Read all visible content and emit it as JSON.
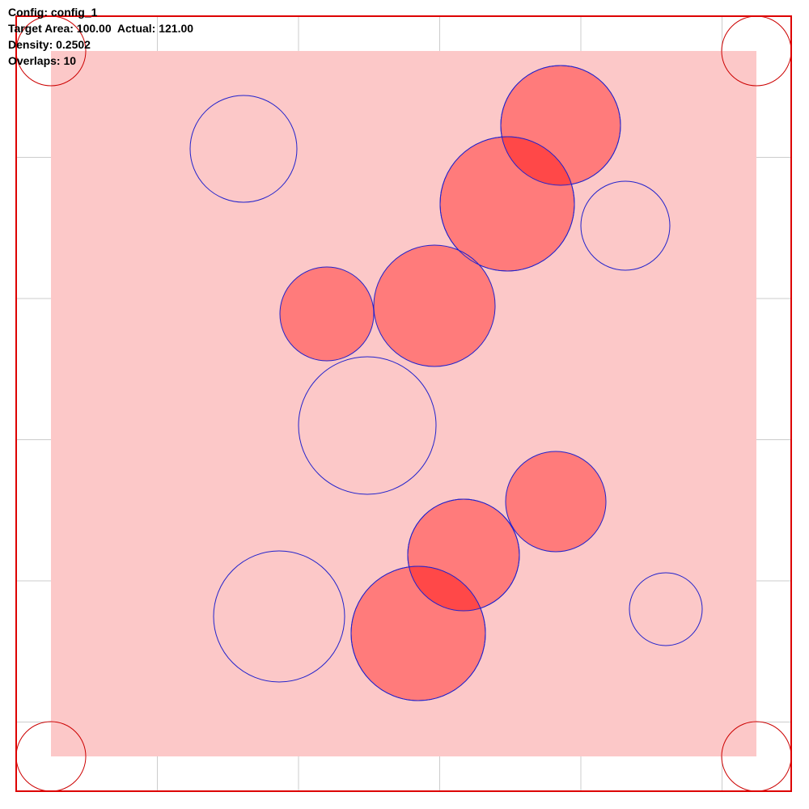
{
  "info": {
    "config": "Config: config_1",
    "area": "Target Area: 100.00  Actual: 121.00",
    "density": "Density: 0.2502",
    "overlaps": "Overlaps: 10"
  },
  "colors": {
    "border": "#dd0000",
    "grid": "#cccccc",
    "region_fill": "#fcc8c8",
    "circle_fill": "#ff7b7b",
    "circle_stroke": "#2222cc",
    "corner_stroke": "#cc0000",
    "overlap_fill": "#ff4848"
  },
  "circles": [
    {
      "filled": true
    },
    {
      "filled": true
    },
    {
      "filled": true
    },
    {
      "filled": true
    },
    {
      "filled": true
    },
    {
      "filled": true
    },
    {
      "filled": true
    },
    {
      "filled": false
    },
    {
      "filled": false
    },
    {
      "filled": false
    },
    {
      "filled": false
    },
    {
      "filled": false
    }
  ]
}
